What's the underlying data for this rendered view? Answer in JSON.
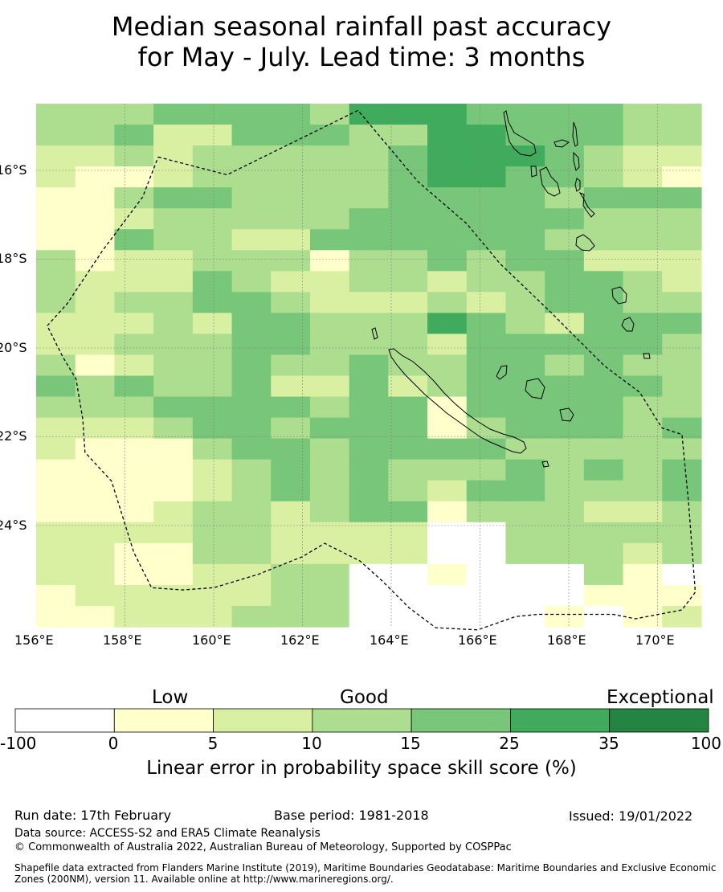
{
  "title_line1": "Median seasonal rainfall past accuracy",
  "title_line2": "for May - July. Lead time: 3 months",
  "map": {
    "lon_ticks": [
      "156°E",
      "158°E",
      "160°E",
      "162°E",
      "164°E",
      "166°E",
      "168°E",
      "170°E"
    ],
    "lat_ticks": [
      "16°S",
      "18°S",
      "20°S",
      "22°S",
      "24°S"
    ]
  },
  "colorbar": {
    "categories": [
      "Low",
      "Good",
      "Exceptional"
    ],
    "ticks": [
      "-100",
      "0",
      "5",
      "10",
      "15",
      "25",
      "35",
      "100"
    ],
    "colors": [
      "#ffffff",
      "#ffffcc",
      "#d9f0a3",
      "#addd8e",
      "#78c679",
      "#41ab5d",
      "#238443"
    ],
    "label": "Linear error in probability space skill score (%)"
  },
  "footer": {
    "run_date": "Run date: 17th February",
    "base_period": "Base period: 1981-2018",
    "issued": "Issued: 19/01/2022",
    "data_source": "Data source: ACCESS-S2 and ERA5 Climate Reanalysis",
    "copyright": "© Commonwealth of Australia 2022, Australian Bureau of Meteorology, Supported by COSPPac",
    "shapefile_line1": "Shapefile data extracted from Flanders Marine Institute (2019), Maritime Boundaries Geodatabase: Maritime Boundaries and Exclusive Economic",
    "shapefile_line2": "Zones (200NM), version 11. Available online at http://www.marineregions.org/."
  },
  "grid": [
    "33344443555444433",
    "33422444335544433",
    "22323333345554322",
    "21123333345544321",
    "11344333344443444",
    "11233333444444333",
    "11433224444443333",
    "31223331334344222",
    "32224322332334432",
    "32334432223234433",
    "22232443335432444",
    "22333443332444443",
    "31233433433443433",
    "43433422423444443",
    "33344443441444433",
    "22234434441344434",
    "21113443444433333",
    "11112343433343434",
    "11112343432443334",
    "11123323441333223",
    "22223322220033333",
    "22113322220033323",
    "22112233001000310",
    "12222233000000111",
    "11222333000001012"
  ],
  "boundary": [
    [
      158.75,
      -15.7
    ],
    [
      160.3,
      -16.1
    ],
    [
      163.25,
      -14.65
    ],
    [
      164.6,
      -16.25
    ],
    [
      165.7,
      -17.2
    ],
    [
      166.45,
      -18.1
    ],
    [
      167.6,
      -19.2
    ],
    [
      168.2,
      -19.8
    ],
    [
      168.8,
      -20.4
    ],
    [
      169.6,
      -21.0
    ],
    [
      170.1,
      -21.8
    ],
    [
      170.55,
      -21.95
    ],
    [
      170.7,
      -23.5
    ],
    [
      170.85,
      -25.5
    ],
    [
      170.55,
      -25.9
    ],
    [
      169.5,
      -26.1
    ],
    [
      169.0,
      -26.0
    ],
    [
      167.3,
      -26.0
    ],
    [
      166.8,
      -26.05
    ],
    [
      165.95,
      -26.35
    ],
    [
      165.0,
      -26.3
    ],
    [
      164.4,
      -25.85
    ],
    [
      163.8,
      -25.25
    ],
    [
      163.3,
      -24.8
    ],
    [
      162.5,
      -24.4
    ],
    [
      162.0,
      -24.7
    ],
    [
      161.0,
      -25.1
    ],
    [
      160.0,
      -25.4
    ],
    [
      159.3,
      -25.45
    ],
    [
      158.6,
      -25.4
    ],
    [
      158.2,
      -24.6
    ],
    [
      157.7,
      -23.0
    ],
    [
      157.1,
      -22.35
    ],
    [
      157.05,
      -21.6
    ],
    [
      156.9,
      -20.7
    ],
    [
      156.6,
      -20.2
    ],
    [
      156.25,
      -19.5
    ],
    [
      156.7,
      -19.0
    ],
    [
      157.5,
      -17.8
    ],
    [
      158.4,
      -16.6
    ],
    [
      158.75,
      -15.7
    ]
  ]
}
